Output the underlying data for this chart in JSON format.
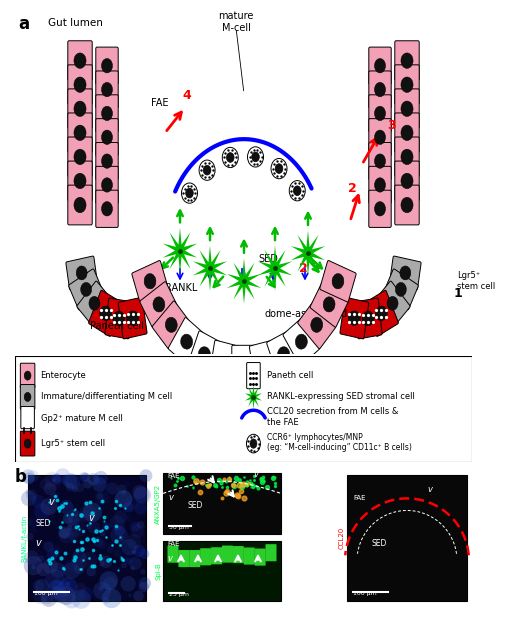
{
  "panel_a_label": "a",
  "panel_b_label": "b",
  "gut_lumen_text": "Gut lumen",
  "mature_mcell_text": "mature\nM-cell",
  "fae_text": "FAE",
  "sed_text": "SED",
  "rankl_text": "RANKL",
  "paneth_text": "Paneth cell",
  "dome_text": "dome-associated\ncrypt",
  "lgr5_text": "Lgr5⁺\nstem cell",
  "colors": {
    "pink": "#F2A0B5",
    "gray": "#888888",
    "light_gray": "#AAAAAA",
    "red": "#CC0000",
    "white": "#FFFFFF",
    "black": "#111111",
    "blue": "#1010EE",
    "green": "#00BB00",
    "dark_red": "#990000",
    "bg": "#FFFFFF"
  },
  "legend_left": [
    "Enterocyte",
    "Immature/differentiating M cell",
    "Gp2⁺ mature M cell",
    "Lgr5⁺ stem cell"
  ],
  "legend_right": [
    "Paneth cell",
    "RANKL-expressing SED stromal cell",
    "CCL20 secretion from M cells &\nthe FAE",
    "CCR6⁺ lymphocytes/MNP\n(eg: “M-cell-inducing” CD11c⁺ B cells)"
  ]
}
